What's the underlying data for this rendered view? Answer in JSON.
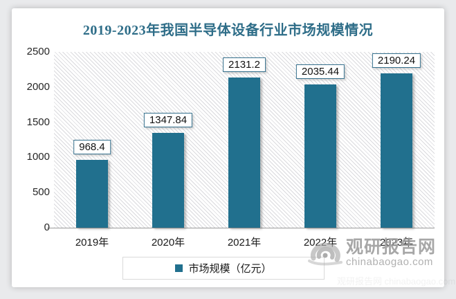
{
  "title": "2019-2023年我国半导体设备行业市场规模情况",
  "chart_data": {
    "type": "bar",
    "categories": [
      "2019年",
      "2020年",
      "2021年",
      "2022年",
      "2023年"
    ],
    "series": [
      {
        "name": "市场规模（亿元）",
        "values": [
          968.4,
          1347.84,
          2131.2,
          2035.44,
          2190.24
        ]
      }
    ],
    "data_labels": [
      968.4,
      1347.84,
      2131.2,
      2035.44,
      2190.24
    ],
    "title": "2019-2023年我国半导体设备行业市场规模情况",
    "xlabel": "",
    "ylabel": "",
    "ylim": [
      0,
      2500
    ],
    "yticks": [
      0,
      500,
      1000,
      1500,
      2000,
      2500
    ],
    "grid": false,
    "legend_position": "bottom",
    "plot_background": "diagonal-hatch"
  },
  "legend": {
    "label": "市场规模（亿元）",
    "marker_color": "#21708e"
  },
  "watermark": {
    "brand": "观研报告网",
    "domain": "chinabaogao.com"
  },
  "colors": {
    "bar": "#21708e",
    "title_text": "#2e6d88",
    "label_box_border": "#35708d",
    "axis_line": "#9a9a9a",
    "legend_border": "#d9d9d9",
    "watermark_gray": "#9c9c9c"
  }
}
